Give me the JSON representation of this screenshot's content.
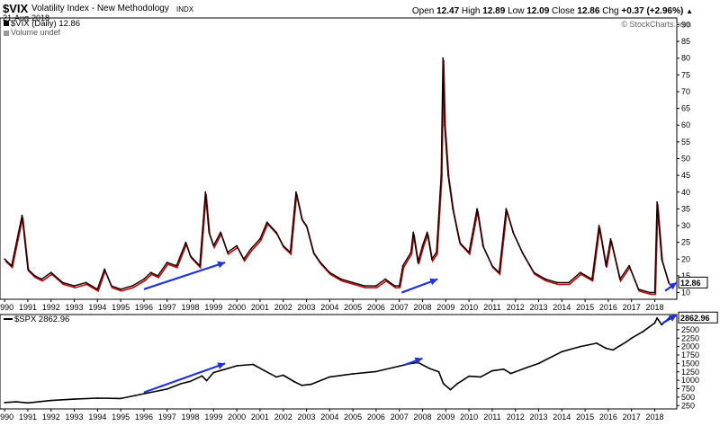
{
  "header": {
    "symbol": "$VIX",
    "full_name": "Volatility Index - New Methodology",
    "exchange": "INDX",
    "date": "21-Aug-2018",
    "open_label": "Open",
    "open": "12.47",
    "high_label": "High",
    "high": "12.89",
    "low_label": "Low",
    "low": "12.09",
    "close_label": "Close",
    "close": "12.86",
    "chg_label": "Chg",
    "chg": "+0.37 (+2.96%)",
    "chg_arrow": "▲",
    "credit": "© StockCharts.com"
  },
  "legend": {
    "vix": "$VIX (Daily) 12.86",
    "volume": "Volume undef",
    "spx": "$SPX 2862.96"
  },
  "colors": {
    "price": "#000000",
    "down": "#cc0000",
    "arrow": "#1f33d6",
    "axis": "#000000",
    "label_bg": "#000000"
  },
  "chart_data": [
    {
      "type": "line",
      "title": "$VIX (Daily)",
      "ylim": [
        8,
        92
      ],
      "yticks": [
        10,
        15,
        20,
        25,
        30,
        35,
        40,
        45,
        50,
        55,
        60,
        65,
        70,
        75,
        80,
        85,
        90
      ],
      "last_value_label": "12.86",
      "x": [
        1990.0,
        1990.3,
        1990.6,
        1990.75,
        1991.0,
        1991.3,
        1991.6,
        1992.0,
        1992.5,
        1993.0,
        1993.5,
        1994.0,
        1994.3,
        1994.6,
        1995.0,
        1995.5,
        1996.0,
        1996.3,
        1996.6,
        1997.0,
        1997.4,
        1997.8,
        1998.0,
        1998.4,
        1998.65,
        1998.8,
        1999.0,
        1999.3,
        1999.6,
        2000.0,
        2000.3,
        2000.6,
        2001.0,
        2001.3,
        2001.7,
        2002.0,
        2002.3,
        2002.55,
        2002.8,
        2003.0,
        2003.3,
        2003.6,
        2004.0,
        2004.5,
        2005.0,
        2005.5,
        2006.0,
        2006.4,
        2006.8,
        2007.0,
        2007.15,
        2007.5,
        2007.6,
        2007.8,
        2008.0,
        2008.2,
        2008.4,
        2008.6,
        2008.8,
        2008.88,
        2008.95,
        2009.1,
        2009.3,
        2009.6,
        2010.0,
        2010.35,
        2010.6,
        2011.0,
        2011.3,
        2011.6,
        2011.9,
        2012.3,
        2012.8,
        2013.3,
        2013.8,
        2014.3,
        2014.8,
        2015.3,
        2015.6,
        2015.9,
        2016.1,
        2016.5,
        2016.9,
        2017.3,
        2017.8,
        2018.0,
        2018.1,
        2018.3,
        2018.6
      ],
      "y": [
        20,
        18,
        28,
        33,
        17,
        15,
        14,
        16,
        13,
        12,
        13,
        11,
        17,
        12,
        11,
        12,
        14,
        16,
        15,
        19,
        18,
        25,
        21,
        18,
        40,
        28,
        24,
        28,
        22,
        24,
        20,
        23,
        26,
        31,
        28,
        24,
        22,
        40,
        32,
        30,
        22,
        19,
        16,
        14,
        13,
        12,
        12,
        14,
        12,
        12,
        18,
        22,
        28,
        19,
        24,
        28,
        20,
        22,
        45,
        80,
        60,
        45,
        35,
        25,
        22,
        35,
        24,
        18,
        16,
        35,
        28,
        22,
        16,
        14,
        13,
        13,
        16,
        14,
        30,
        18,
        26,
        14,
        18,
        11,
        10,
        10,
        37,
        20,
        13
      ]
    },
    {
      "type": "line",
      "title": "$SPX",
      "ylim": [
        150,
        2950
      ],
      "yticks": [
        250,
        500,
        750,
        1000,
        1250,
        1500,
        1750,
        2000,
        2250,
        2500
      ],
      "last_value_label": "2862.96",
      "x": [
        1990.0,
        1990.5,
        1991.0,
        1992.0,
        1993.0,
        1994.0,
        1995.0,
        1996.0,
        1997.0,
        1997.6,
        1998.0,
        1998.5,
        1998.7,
        1999.0,
        1999.5,
        2000.0,
        2000.7,
        2001.2,
        2001.7,
        2002.0,
        2002.5,
        2002.8,
        2003.2,
        2004.0,
        2005.0,
        2006.0,
        2007.0,
        2007.5,
        2007.8,
        2008.3,
        2008.7,
        2008.9,
        2009.2,
        2009.5,
        2010.0,
        2010.5,
        2011.0,
        2011.5,
        2011.8,
        2012.5,
        2013.0,
        2014.0,
        2014.8,
        2015.5,
        2015.9,
        2016.2,
        2016.8,
        2017.0,
        2017.5,
        2018.0,
        2018.1,
        2018.3,
        2018.64
      ],
      "y": [
        340,
        360,
        330,
        400,
        440,
        470,
        460,
        600,
        740,
        900,
        970,
        1130,
        990,
        1230,
        1330,
        1430,
        1470,
        1280,
        1100,
        1150,
        950,
        850,
        880,
        1100,
        1190,
        1260,
        1420,
        1500,
        1530,
        1350,
        1250,
        900,
        720,
        900,
        1120,
        1100,
        1280,
        1330,
        1200,
        1380,
        1500,
        1850,
        2000,
        2100,
        1950,
        1900,
        2150,
        2250,
        2450,
        2700,
        2850,
        2650,
        2862.96
      ]
    }
  ],
  "x_axis": {
    "years": [
      1990,
      1991,
      1992,
      1993,
      1994,
      1995,
      1996,
      1997,
      1998,
      1999,
      2000,
      2001,
      2002,
      2003,
      2004,
      2005,
      2006,
      2007,
      2008,
      2009,
      2010,
      2011,
      2012,
      2013,
      2014,
      2015,
      2016,
      2017,
      2018
    ],
    "labels": [
      "1990",
      "1991",
      "1992",
      "1993",
      "1994",
      "1995",
      "1996",
      "1997",
      "1998",
      "1999",
      "2000",
      "2001",
      "2002",
      "2003",
      "2004",
      "2005",
      "2006",
      "2007",
      "2008",
      "2009",
      "2010",
      "2011",
      "2012",
      "2013",
      "2014",
      "2015",
      "2016",
      "2017",
      "2018"
    ],
    "range": [
      1989.8,
      2018.95
    ]
  },
  "annotations": {
    "vix_arrows": [
      {
        "from": [
          1996.0,
          11
        ],
        "to": [
          1999.5,
          19
        ]
      },
      {
        "from": [
          2007.1,
          10
        ],
        "to": [
          2008.65,
          14
        ]
      },
      {
        "from": [
          2018.45,
          10.5
        ],
        "to": [
          2018.95,
          13
        ]
      }
    ],
    "spx_arrows": [
      {
        "from": [
          1996.0,
          640
        ],
        "to": [
          1999.5,
          1500
        ]
      },
      {
        "from": [
          2007.2,
          1450
        ],
        "to": [
          2008.0,
          1650
        ]
      },
      {
        "from": [
          2018.35,
          2700
        ],
        "to": [
          2018.95,
          2940
        ]
      }
    ]
  }
}
